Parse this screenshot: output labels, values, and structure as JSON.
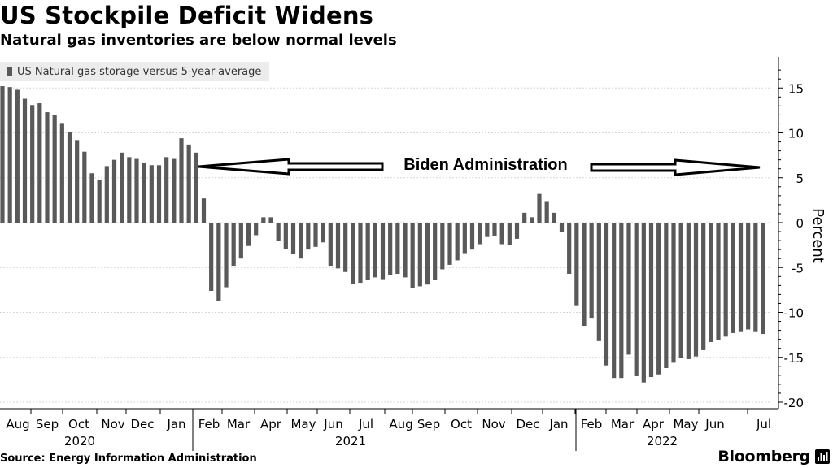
{
  "header": {
    "title": "US Stockpile Deficit Widens",
    "subtitle": "Natural gas inventories are below normal levels"
  },
  "legend": {
    "label": "US Natural gas storage versus 5-year-average"
  },
  "annotation": {
    "label": "Biden Administration"
  },
  "footer": {
    "source": "Source: Energy Information Administration",
    "brand": "Bloomberg"
  },
  "chart_data": {
    "type": "bar",
    "series": [
      {
        "values": [
          15.2,
          15.1,
          14.8,
          13.8,
          13.1,
          13.3,
          12.3,
          12.0,
          11.1,
          10.1,
          9.2,
          7.9,
          5.5,
          4.8,
          6.3,
          7.0,
          7.8,
          7.3,
          7.1,
          6.7,
          6.4,
          6.4,
          7.3,
          7.1,
          9.4,
          8.7,
          7.8,
          2.7,
          -7.6,
          -8.7,
          -7.2,
          -4.8,
          -4.0,
          -2.6,
          -1.4,
          0.6,
          0.6,
          -2.0,
          -2.9,
          -3.5,
          -4.0,
          -3.0,
          -2.7,
          -2.2,
          -4.8,
          -5.1,
          -5.5,
          -6.8,
          -6.7,
          -6.4,
          -6.1,
          -6.3,
          -5.8,
          -5.7,
          -6.1,
          -7.3,
          -7.1,
          -6.9,
          -6.4,
          -5.2,
          -4.7,
          -4.2,
          -3.4,
          -3.0,
          -2.4,
          -1.6,
          -1.5,
          -2.4,
          -2.5,
          -1.8,
          1.1,
          0.6,
          3.2,
          2.4,
          1.1,
          -1.0,
          -5.7,
          -9.2,
          -11.5,
          -10.6,
          -13.2,
          -15.9,
          -17.3,
          -17.3,
          -14.7,
          -17.1,
          -17.8,
          -17.2,
          -16.9,
          -16.2,
          -15.6,
          -15.1,
          -15.2,
          -14.9,
          -14.2,
          -13.3,
          -13.1,
          -12.7,
          -12.3,
          -12.1,
          -11.9,
          -12.1,
          -12.4
        ]
      }
    ],
    "ylabel": "Percent",
    "ylim": [
      -20,
      17
    ],
    "yticks": [
      15,
      10,
      5,
      0,
      -5,
      -10,
      -15,
      -20
    ],
    "month_labels": [
      "Aug",
      "Sep",
      "Oct",
      "Nov",
      "Dec",
      "Jan",
      "Feb",
      "Mar",
      "Apr",
      "May",
      "Jun",
      "Jul",
      "Aug",
      "Sep",
      "Oct",
      "Nov",
      "Dec",
      "Jan",
      "Feb",
      "Mar",
      "Apr",
      "May",
      "Jun",
      "Jul"
    ],
    "year_labels": [
      "2020",
      "2021",
      "2022"
    ],
    "grid": true,
    "legend_position": "top-left",
    "bar_color": "#595959"
  }
}
